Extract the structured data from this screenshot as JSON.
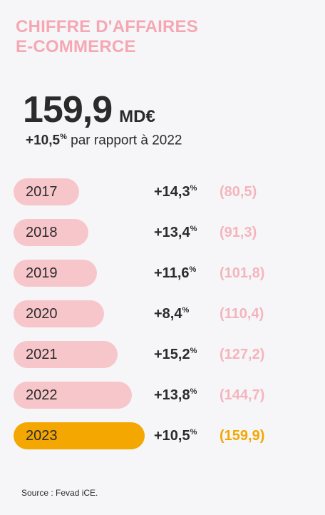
{
  "title": {
    "line1": "CHIFFRE D'AFFAIRES",
    "line2": "E-COMMERCE"
  },
  "headline": {
    "value": "159,9",
    "unit": "MD€",
    "growth": "+10,5",
    "growth_symbol": "%",
    "growth_text": " par rapport à 2022"
  },
  "colors": {
    "bar": "#f7c6cb",
    "highlight": "#f3a700",
    "amount": "#f5b4bd",
    "text": "#2b2b2b",
    "title": "#f5a8b4"
  },
  "chart_data": {
    "type": "bar",
    "orientation": "horizontal",
    "categories": [
      "2017",
      "2018",
      "2019",
      "2020",
      "2021",
      "2022",
      "2023"
    ],
    "values": [
      80.5,
      91.3,
      101.8,
      110.4,
      127.2,
      144.7,
      159.9
    ],
    "growth_labels": [
      "+14,3",
      "+13,4",
      "+11,6",
      "+8,4",
      "+15,2",
      "+13,8",
      "+10,5"
    ],
    "growth_symbol": "%",
    "value_labels": [
      "(80,5)",
      "(91,3)",
      "(101,8)",
      "(110,4)",
      "(127,2)",
      "(144,7)",
      "(159,9)"
    ],
    "highlight_category": "2023"
  },
  "source": "Source : Fevad iCE."
}
